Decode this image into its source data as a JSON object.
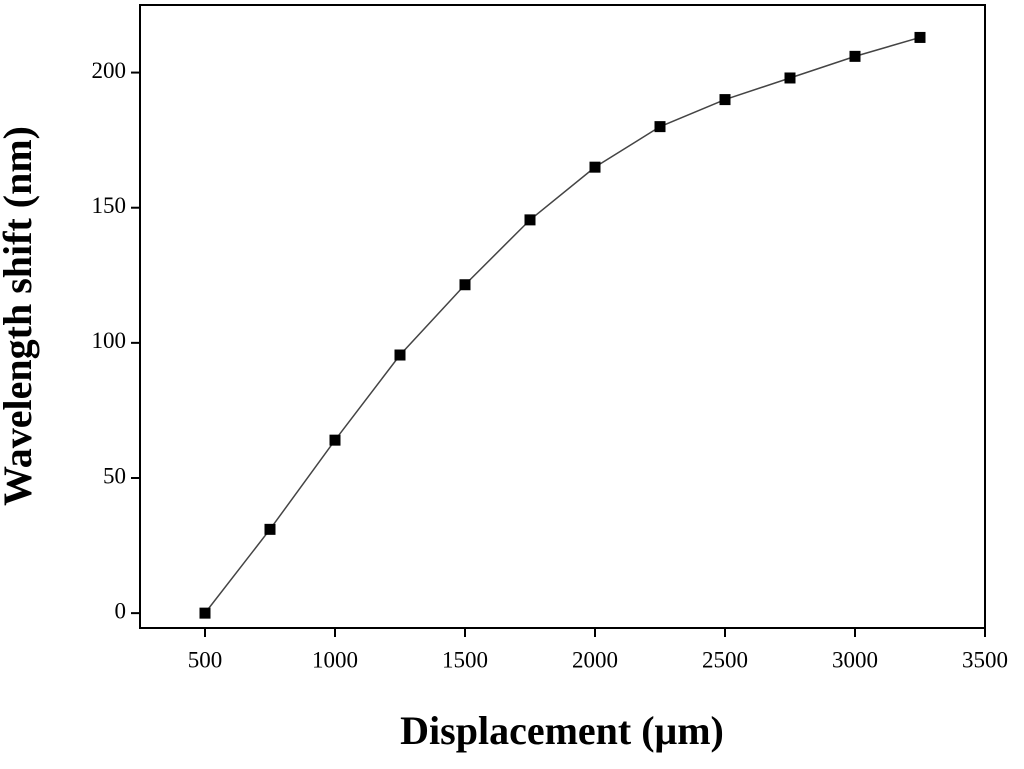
{
  "chart_data": {
    "type": "line",
    "x_label": "Displacement (μm)",
    "y_label": "Wavelength shift (nm)",
    "x": [
      500,
      750,
      1000,
      1250,
      1500,
      1750,
      2000,
      2250,
      2500,
      2750,
      3000,
      3250
    ],
    "series": [
      {
        "color": "#000000",
        "values": [
          0,
          31,
          64,
          95.5,
          121.5,
          145.5,
          165,
          180,
          190,
          198,
          206,
          213
        ]
      }
    ],
    "xlim": [
      250,
      3500
    ],
    "xticks": [
      500,
      1000,
      1500,
      2000,
      2500,
      3000,
      3500
    ],
    "ylim": [
      -5.5,
      225
    ],
    "yticks": [
      0,
      50,
      100,
      150,
      200
    ],
    "marker": "square"
  }
}
